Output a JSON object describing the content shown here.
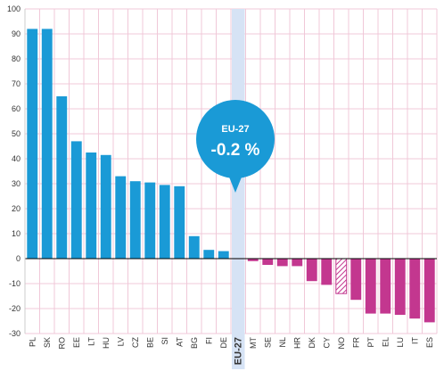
{
  "chart_data": {
    "type": "bar",
    "categories": [
      "PL",
      "SK",
      "RO",
      "EE",
      "LT",
      "HU",
      "LV",
      "CZ",
      "BE",
      "SI",
      "AT",
      "BG",
      "FI",
      "DE",
      "EU-27",
      "MT",
      "SE",
      "NL",
      "HR",
      "DK",
      "CY",
      "NO",
      "FR",
      "PT",
      "EL",
      "LU",
      "IT",
      "ES"
    ],
    "values": [
      92,
      92,
      65,
      47,
      42.5,
      41.5,
      33,
      31,
      30.5,
      29.5,
      29,
      9,
      3.5,
      3,
      -0.2,
      -1,
      -2.5,
      -3,
      -3,
      -9,
      -10.5,
      -14,
      -16.5,
      -22,
      -22,
      -22.5,
      -24,
      -25.5
    ],
    "ylim": [
      -30,
      100
    ],
    "yticks": [
      -30,
      -20,
      -10,
      0,
      10,
      20,
      30,
      40,
      50,
      60,
      70,
      80,
      90,
      100
    ],
    "grid": true,
    "colors": {
      "positive": "#1a9ad6",
      "negative": "#c3378f",
      "highlight": "#d6e3f5",
      "hatched": "#c3378f",
      "grid": "#f0c8d8",
      "axis": "#000000",
      "highlight_label": "#1a6fb5"
    },
    "highlight_category": "EU-27",
    "hatched_categories": [
      "NO"
    ],
    "muted_label_categories": [
      "NO"
    ],
    "callout": {
      "title": "EU-27",
      "value": "-0.2 %"
    }
  }
}
